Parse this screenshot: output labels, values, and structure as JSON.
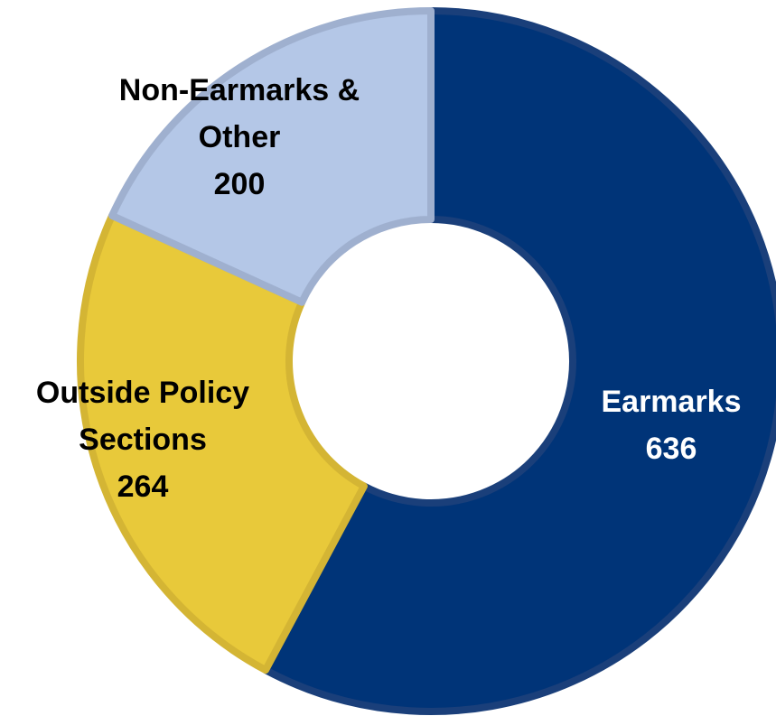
{
  "chart_data": {
    "type": "donut",
    "categories": [
      "Earmarks",
      "Outside Policy Sections",
      "Non-Earmarks & Other"
    ],
    "values": [
      636,
      264,
      200
    ],
    "colors": [
      "#003478",
      "#e8c93a",
      "#b4c7e7"
    ],
    "label_colors": [
      "#ffffff",
      "#000000",
      "#000000"
    ]
  }
}
